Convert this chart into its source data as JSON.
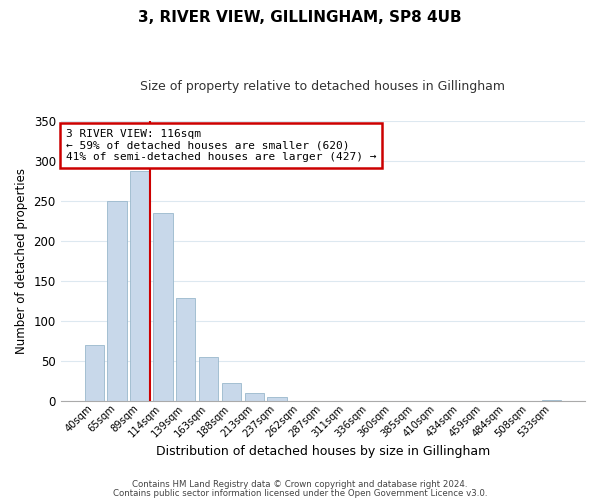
{
  "title": "3, RIVER VIEW, GILLINGHAM, SP8 4UB",
  "subtitle": "Size of property relative to detached houses in Gillingham",
  "xlabel": "Distribution of detached houses by size in Gillingham",
  "ylabel": "Number of detached properties",
  "bar_color": "#c8d8ea",
  "bar_edge_color": "#9ab8cc",
  "categories": [
    "40sqm",
    "65sqm",
    "89sqm",
    "114sqm",
    "139sqm",
    "163sqm",
    "188sqm",
    "213sqm",
    "237sqm",
    "262sqm",
    "287sqm",
    "311sqm",
    "336sqm",
    "360sqm",
    "385sqm",
    "410sqm",
    "434sqm",
    "459sqm",
    "484sqm",
    "508sqm",
    "533sqm"
  ],
  "values": [
    70,
    250,
    287,
    235,
    128,
    54,
    22,
    10,
    4,
    0,
    0,
    0,
    0,
    0,
    0,
    0,
    0,
    0,
    0,
    0,
    1
  ],
  "vline_color": "#cc0000",
  "vline_index": 2.5,
  "ylim": [
    0,
    350
  ],
  "yticks": [
    0,
    50,
    100,
    150,
    200,
    250,
    300,
    350
  ],
  "annotation_text": "3 RIVER VIEW: 116sqm\n← 59% of detached houses are smaller (620)\n41% of semi-detached houses are larger (427) →",
  "annotation_box_color": "#ffffff",
  "annotation_box_edge": "#cc0000",
  "footer_line1": "Contains HM Land Registry data © Crown copyright and database right 2024.",
  "footer_line2": "Contains public sector information licensed under the Open Government Licence v3.0.",
  "background_color": "#ffffff",
  "grid_color": "#dde8f0"
}
